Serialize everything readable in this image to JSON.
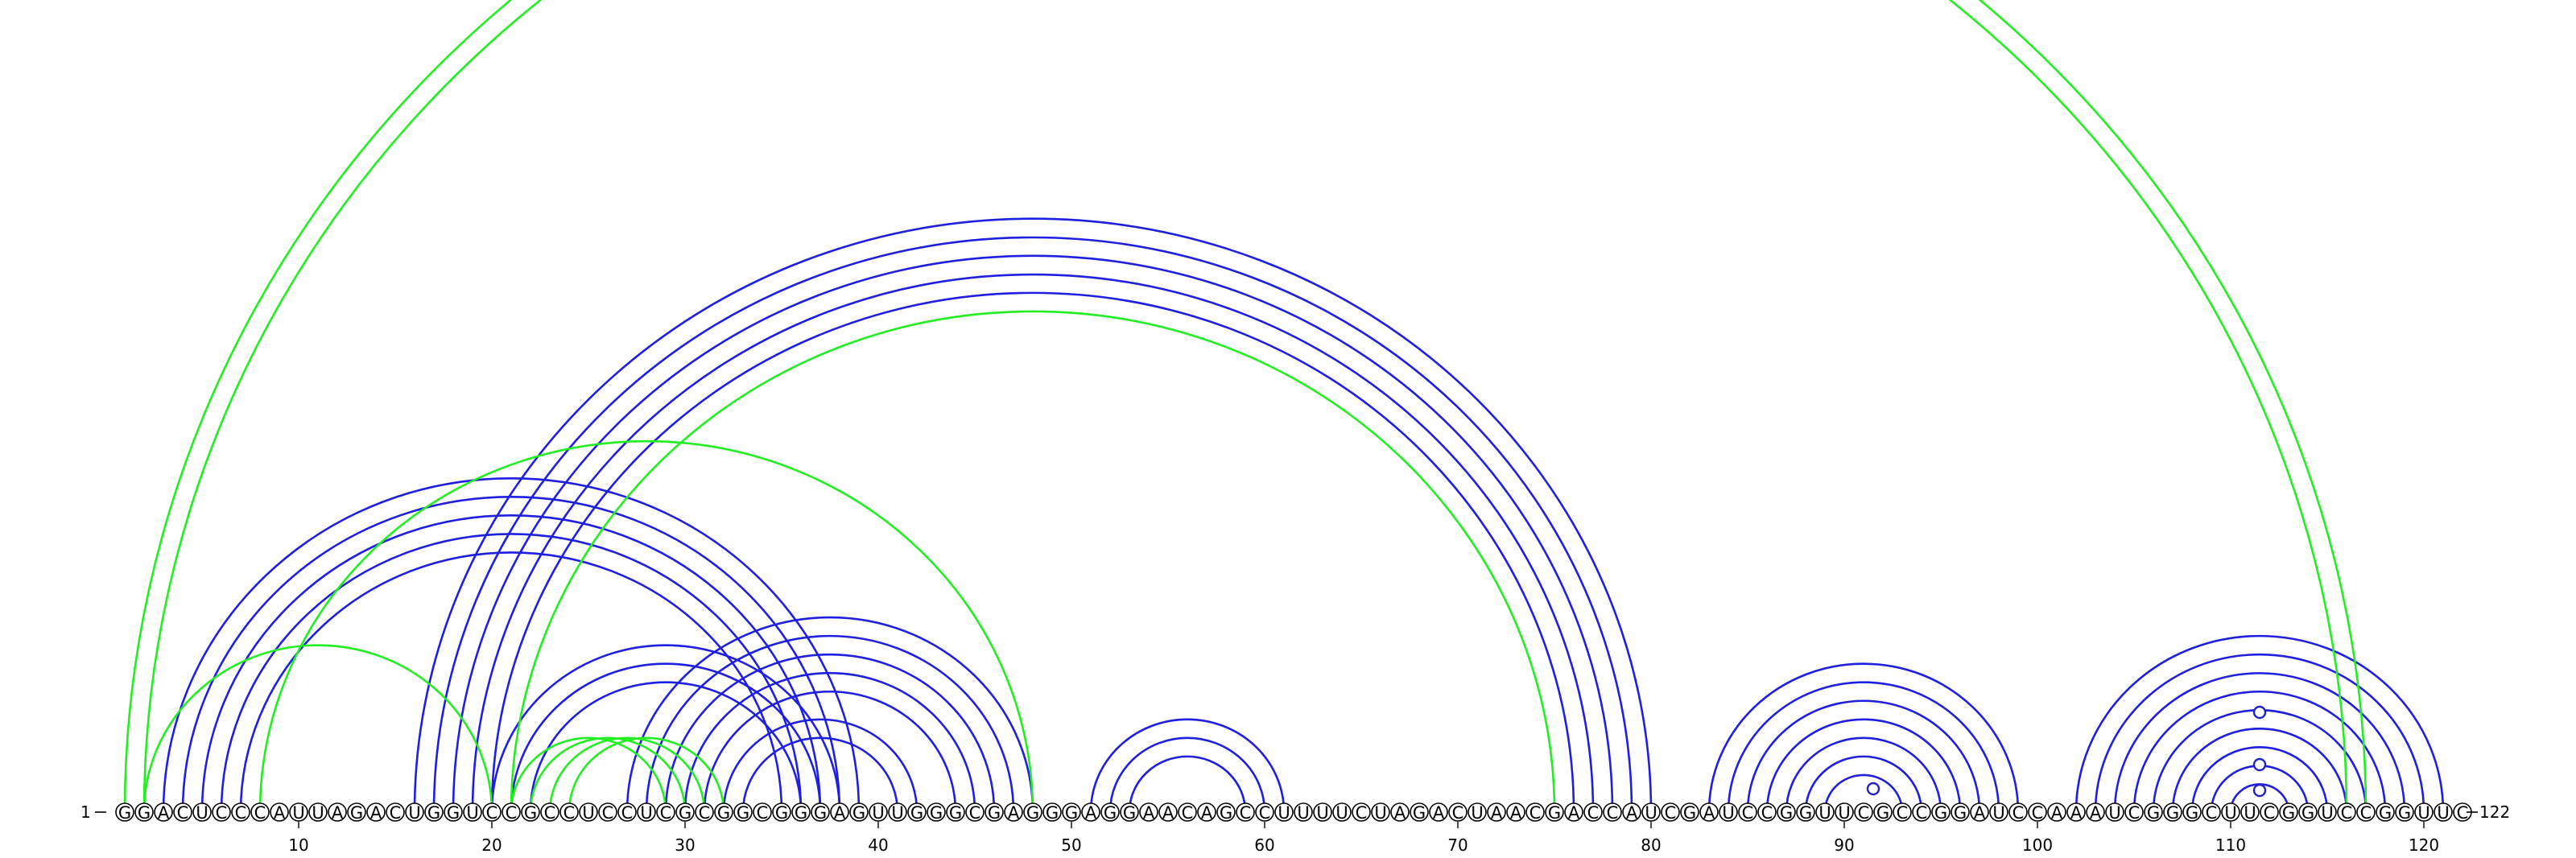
{
  "sequence": "GGACUCCCAUUAGACUGGUCCGCCUCCUCGCGGCGGGAGUUGGGCGAGGGAGGAACAGCCUUUUCUAGACUAACGACCAUCGAUCCGGUUCGCCGGAUCCAAAUCGGGCUUCGGUCCGGUUC",
  "start_label": "1",
  "end_label": "122",
  "position_ticks": [
    "10",
    "20",
    "30",
    "40",
    "50",
    "60",
    "70",
    "80",
    "90",
    "100",
    "110",
    "120"
  ],
  "colors": {
    "structure_a": "#1f1fe0",
    "structure_b": "#22ee22"
  },
  "blue_pairs": [
    [
      3,
      39
    ],
    [
      4,
      38
    ],
    [
      5,
      37
    ],
    [
      6,
      36
    ],
    [
      7,
      35
    ],
    [
      16,
      80
    ],
    [
      17,
      79
    ],
    [
      18,
      78
    ],
    [
      19,
      77
    ],
    [
      20,
      76
    ],
    [
      20,
      38
    ],
    [
      21,
      37
    ],
    [
      22,
      36
    ],
    [
      27,
      48
    ],
    [
      28,
      47
    ],
    [
      29,
      46
    ],
    [
      30,
      45
    ],
    [
      31,
      44
    ],
    [
      32,
      42
    ],
    [
      33,
      41
    ],
    [
      51,
      61
    ],
    [
      52,
      60
    ],
    [
      53,
      59
    ],
    [
      83,
      99
    ],
    [
      84,
      98
    ],
    [
      85,
      97
    ],
    [
      86,
      96
    ],
    [
      87,
      95
    ],
    [
      88,
      94
    ],
    [
      89,
      93
    ],
    [
      102,
      121
    ],
    [
      103,
      120
    ],
    [
      104,
      119
    ],
    [
      105,
      118
    ],
    [
      106,
      117
    ],
    [
      107,
      116
    ],
    [
      108,
      115
    ],
    [
      109,
      114
    ],
    [
      110,
      113
    ]
  ],
  "green_pairs": [
    [
      1,
      117
    ],
    [
      2,
      116
    ],
    [
      2,
      20
    ],
    [
      8,
      48
    ],
    [
      21,
      75
    ],
    [
      21,
      29
    ],
    [
      22,
      30
    ],
    [
      23,
      31
    ],
    [
      24,
      32
    ]
  ],
  "loop_markers": [
    91,
    111,
    111,
    111
  ]
}
